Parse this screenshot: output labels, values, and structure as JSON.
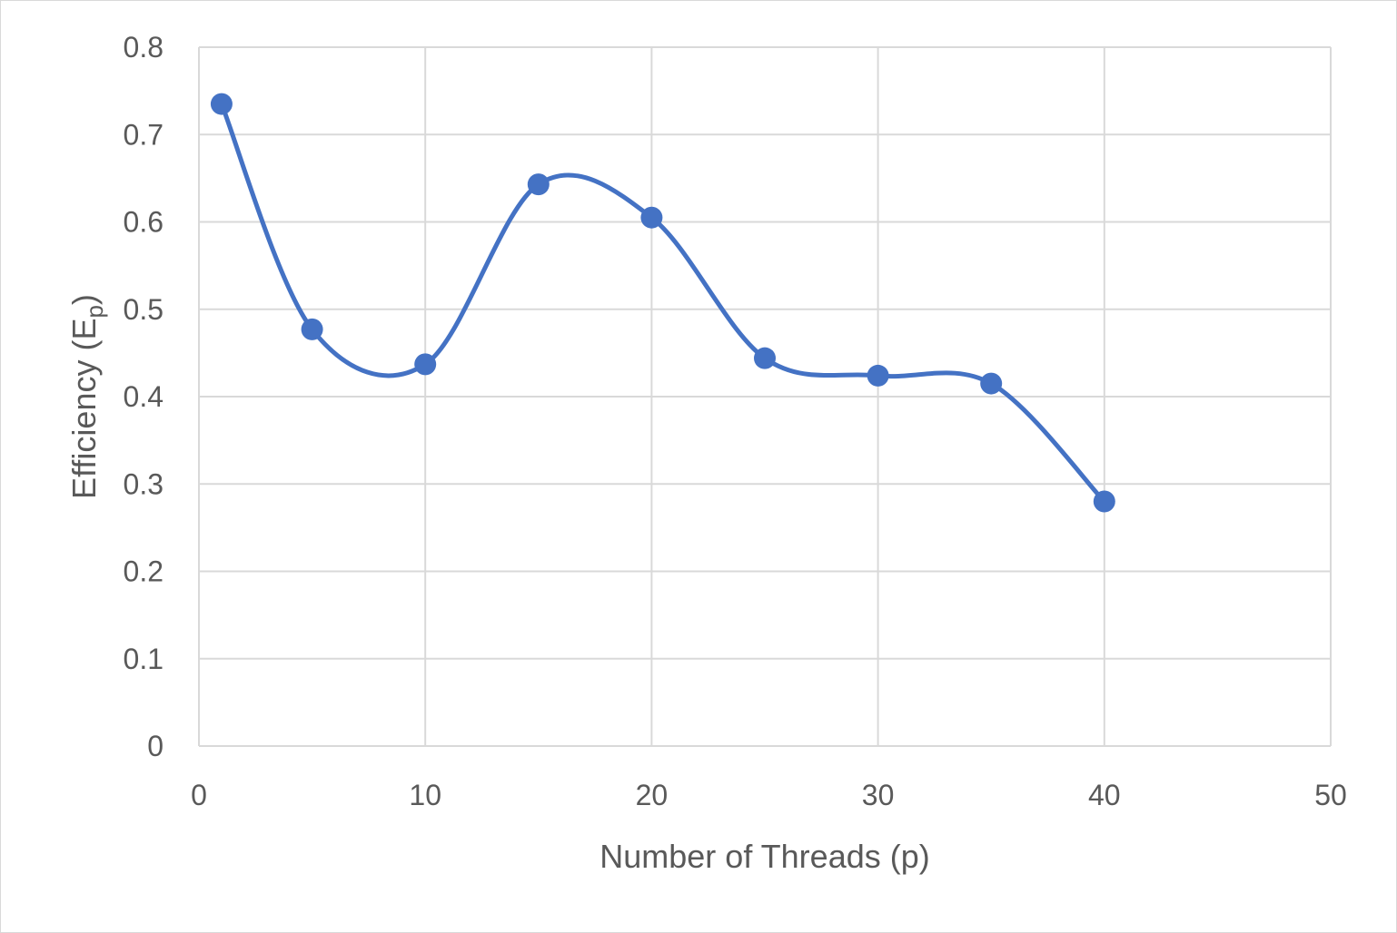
{
  "chart_data": {
    "type": "scatter",
    "title": "",
    "xlabel": "Number of Threads (p)",
    "ylabel_main": "Efficiency (E",
    "ylabel_sub": "p",
    "ylabel_close": ")",
    "xlim": [
      0,
      50
    ],
    "ylim": [
      0,
      0.8
    ],
    "xticks": [
      0,
      10,
      20,
      30,
      40,
      50
    ],
    "yticks": [
      0,
      0.1,
      0.2,
      0.3,
      0.4,
      0.5,
      0.6,
      0.7,
      0.8
    ],
    "grid": true,
    "legend": "none",
    "smooth_line": true,
    "series": [
      {
        "x": [
          1,
          5,
          10,
          15,
          20,
          25,
          30,
          35,
          40
        ],
        "y": [
          0.735,
          0.477,
          0.437,
          0.643,
          0.605,
          0.444,
          0.424,
          0.415,
          0.28
        ],
        "color": "#4472c4"
      }
    ]
  }
}
